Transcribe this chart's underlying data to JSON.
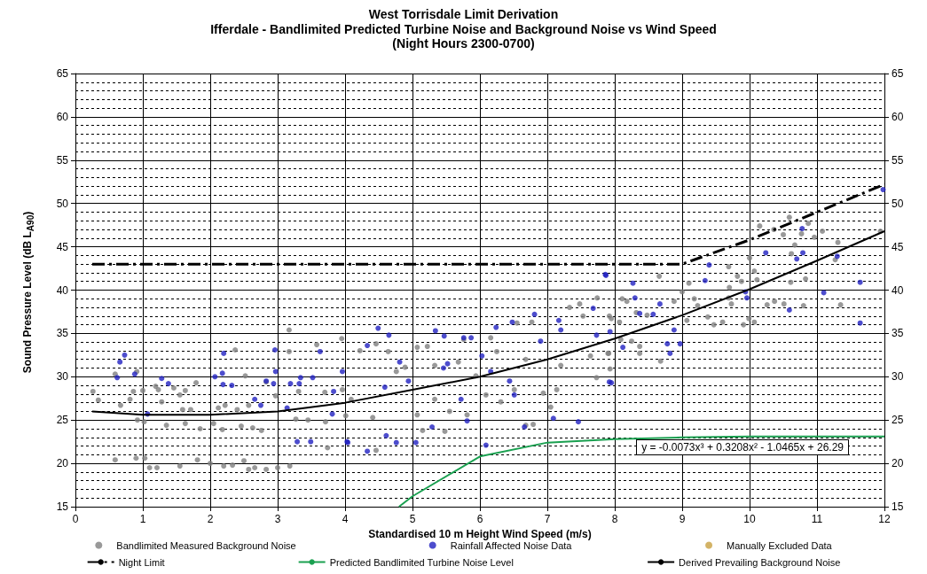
{
  "chart_data": {
    "type": "scatter",
    "title": "West Torrisdale Limit Derivation",
    "subtitle": "Ifferdale - Bandlimited Predicted Turbine Noise and Background Noise vs Wind Speed\n(Night Hours 2300-0700)",
    "xlabel": "Standardised 10 m Height Wind Speed (m/s)",
    "ylabel": "Sound Pressure Level (dB L$_{A90}$)",
    "annotations": [
      "y = -0.0073x³ + 0.3208x² - 1.0465x + 26.29"
    ],
    "xlim": [
      0,
      12
    ],
    "xticks": [
      0,
      1,
      2,
      3,
      4,
      5,
      6,
      7,
      8,
      9,
      10,
      11,
      12
    ],
    "ylim": [
      15,
      65
    ],
    "yticks": [
      15,
      20,
      25,
      30,
      35,
      40,
      45,
      50,
      55,
      60,
      65
    ],
    "y2lim": [
      15,
      65
    ],
    "y2ticks": [
      15,
      20,
      25,
      30,
      35,
      40,
      45,
      50,
      55,
      60,
      65
    ],
    "grid": true,
    "legend": "bottom",
    "series": [
      {
        "name": "Bandlimited Measured Background Noise",
        "marker": "circle",
        "color": "#808080",
        "x": [
          0.26,
          0.34,
          0.67,
          0.59,
          0.91,
          0.86,
          0.81,
          1.0,
          1.19,
          1.23,
          1.28,
          1.46,
          1.55,
          1.63,
          1.79,
          1.59,
          1.71,
          0.92,
          1.02,
          1.35,
          1.63,
          1.85,
          2.05,
          2.18,
          2.37,
          2.52,
          2.12,
          2.22,
          2.4,
          2.57,
          2.46,
          2.63,
          2.76,
          2.83,
          2.97,
          3.17,
          3.17,
          3.31,
          3.27,
          3.45,
          3.58,
          3.7,
          3.71,
          3.74,
          3.95,
          3.96,
          4.01,
          0.59,
          0.9,
          1.03,
          1.1,
          1.21,
          1.55,
          1.81,
          2.0,
          2.2,
          2.33,
          2.5,
          2.57,
          2.83,
          3.0,
          3.18,
          2.66,
          4.09,
          4.22,
          4.46,
          4.46,
          4.64,
          4.76,
          4.89,
          5.07,
          5.22,
          5.07,
          5.15,
          5.33,
          5.48,
          5.55,
          5.76,
          5.81,
          5.94,
          6.09,
          6.16,
          6.25,
          6.31,
          6.51,
          6.55,
          6.68,
          6.77,
          6.79,
          6.94,
          7.05,
          7.14,
          7.33,
          7.48,
          7.53,
          7.74,
          7.64,
          7.73,
          7.92,
          7.9,
          7.2,
          6.68,
          5.68,
          4.41,
          5.33,
          8.66,
          9.0,
          9.1,
          9.18,
          9.23,
          8.88,
          8.68,
          8.37,
          7.93,
          7.91,
          8.11,
          8.18,
          8.32,
          8.48,
          8.37,
          8.25,
          8.09,
          7.95,
          8.07,
          9.07,
          9.38,
          9.47,
          9.6,
          9.69,
          9.82,
          9.7,
          9.69,
          9.73,
          9.88,
          10.0,
          10.07,
          10.11,
          9.99,
          10.07,
          9.91,
          10.15,
          10.36,
          10.5,
          10.59,
          10.67,
          10.77,
          10.87,
          10.96,
          11.08,
          10.62,
          10.61,
          10.83,
          10.26,
          10.37,
          10.51,
          10.8,
          11.35,
          11.31,
          11.27,
          11.94
        ],
        "values": [
          28.3,
          27.3,
          26.7,
          30.3,
          30.6,
          28.3,
          27.4,
          28.4,
          28.9,
          28.5,
          27.1,
          28.7,
          27.9,
          28.4,
          29.3,
          26.2,
          26.2,
          25.0,
          24.8,
          24.4,
          24.6,
          24.0,
          24.6,
          23.9,
          33.1,
          30.1,
          26.4,
          26.7,
          26.2,
          26.7,
          24.3,
          24.1,
          23.8,
          29.4,
          27.8,
          35.4,
          32.9,
          28.3,
          25.1,
          25.0,
          33.7,
          28.2,
          24.8,
          21.8,
          34.4,
          28.5,
          25.5,
          20.4,
          20.6,
          20.6,
          19.5,
          19.5,
          19.7,
          20.4,
          20.0,
          19.7,
          19.8,
          20.3,
          19.3,
          19.3,
          19.5,
          19.7,
          19.5,
          27.4,
          33.0,
          33.8,
          21.5,
          32.9,
          30.6,
          31.1,
          33.4,
          33.5,
          25.6,
          23.8,
          27.4,
          23.7,
          26.0,
          34.3,
          25.6,
          30.1,
          27.9,
          34.5,
          32.9,
          27.1,
          28.5,
          36.2,
          24.4,
          36.3,
          24.5,
          28.1,
          26.5,
          28.5,
          38.0,
          38.4,
          37.0,
          39.1,
          32.4,
          29.9,
          37.0,
          32.7,
          31.3,
          32.0,
          31.7,
          25.3,
          31.3,
          41.6,
          39.8,
          40.8,
          39.0,
          38.2,
          38.7,
          31.8,
          32.7,
          30.9,
          32.7,
          39.0,
          38.7,
          37.4,
          37.1,
          33.5,
          34.1,
          34.3,
          36.7,
          36.3,
          36.5,
          36.9,
          36.0,
          36.3,
          42.7,
          41.6,
          40.3,
          39.1,
          38.4,
          41.0,
          43.7,
          42.2,
          41.2,
          36.7,
          36.3,
          36.0,
          47.4,
          47.0,
          46.4,
          48.4,
          45.2,
          46.5,
          47.7,
          46.1,
          46.8,
          44.2,
          40.9,
          41.3,
          38.3,
          38.7,
          38.4,
          38.2,
          38.3,
          45.5,
          43.5,
          46.8
        ]
      },
      {
        "name": "Rainfall Affected Noise Data",
        "marker": "circle",
        "color": "#2020c0",
        "x": [
          0.66,
          0.73,
          0.62,
          0.88,
          1.28,
          1.38,
          2.2,
          2.07,
          2.18,
          2.19,
          2.32,
          2.96,
          2.97,
          2.94,
          2.83,
          3.19,
          3.34,
          3.32,
          3.52,
          3.63,
          3.83,
          3.81,
          3.29,
          3.49,
          4.03,
          3.96,
          2.75,
          2.66,
          3.14,
          1.07,
          4.49,
          4.65,
          4.33,
          4.04,
          4.33,
          4.61,
          4.76,
          4.59,
          4.94,
          5.05,
          5.34,
          5.47,
          5.46,
          5.52,
          5.76,
          5.87,
          5.72,
          5.81,
          5.29,
          6.09,
          6.24,
          6.48,
          6.81,
          6.9,
          6.44,
          6.51,
          6.66,
          7.09,
          7.46,
          7.2,
          7.17,
          7.68,
          7.73,
          7.86,
          7.92,
          6.03,
          6.16,
          4.81,
          7.87,
          8.27,
          8.3,
          8.67,
          8.37,
          8.57,
          8.88,
          8.78,
          8.82,
          8.97,
          8.12,
          7.93,
          7.95,
          9.4,
          9.34,
          9.94,
          9.96,
          10.24,
          10.78,
          10.79,
          10.7,
          10.59,
          11.1,
          11.3,
          11.64,
          11.64,
          11.98
        ],
        "values": [
          31.7,
          32.5,
          29.9,
          30.3,
          29.8,
          29.2,
          32.7,
          30.0,
          30.4,
          29.1,
          29.0,
          33.1,
          30.6,
          29.2,
          29.5,
          29.2,
          29.9,
          29.2,
          29.9,
          32.9,
          28.3,
          25.7,
          22.5,
          22.5,
          22.5,
          30.6,
          26.7,
          27.4,
          26.4,
          25.7,
          35.6,
          34.8,
          33.6,
          22.4,
          21.4,
          23.2,
          22.4,
          28.8,
          29.5,
          22.4,
          35.3,
          34.7,
          31.0,
          31.5,
          34.5,
          34.5,
          27.4,
          24.9,
          24.2,
          22.1,
          35.7,
          36.3,
          37.2,
          34.1,
          29.5,
          27.9,
          24.2,
          25.2,
          24.8,
          35.4,
          36.5,
          37.9,
          34.8,
          41.8,
          29.4,
          32.4,
          30.6,
          31.7,
          41.7,
          40.8,
          39.1,
          38.4,
          37.3,
          37.2,
          35.4,
          33.8,
          32.7,
          33.8,
          33.4,
          35.2,
          29.3,
          42.9,
          41.1,
          39.8,
          39.1,
          44.3,
          47.1,
          44.3,
          43.6,
          37.7,
          39.7,
          43.9,
          40.9,
          36.2,
          51.6
        ]
      },
      {
        "name": "Manually Excluded Data",
        "marker": "circle",
        "color": "#c8a040"
      },
      {
        "name": "Night Limit",
        "type": "line",
        "marker": "none",
        "color": "#000000",
        "line_style": "dashed",
        "x": [
          0.25,
          9,
          10,
          11,
          12
        ],
        "values": [
          43,
          43,
          45.8,
          49,
          52.2
        ]
      },
      {
        "name": "Predicted Bandlimited Turbine Noise Level",
        "type": "line",
        "marker": "none",
        "color": "#1aa050",
        "line_style": "solid",
        "x": [
          4.8,
          5,
          6,
          7,
          8,
          9,
          10,
          11,
          12
        ],
        "values": [
          15,
          16.2,
          20.8,
          22.4,
          22.8,
          23.0,
          23.1,
          23.1,
          23.1
        ]
      },
      {
        "name": "Derived Prevailing Background Noise",
        "type": "line",
        "marker": "none",
        "color": "#000000",
        "line_style": "solid",
        "x": [
          0.25,
          1,
          2,
          3,
          4,
          5,
          6,
          7,
          8,
          9,
          10,
          11,
          12
        ],
        "values": [
          26.0,
          25.6,
          25.6,
          26.0,
          27.0,
          28.5,
          30.0,
          32.0,
          34.4,
          37.1,
          40.1,
          43.4,
          46.8
        ]
      }
    ]
  }
}
